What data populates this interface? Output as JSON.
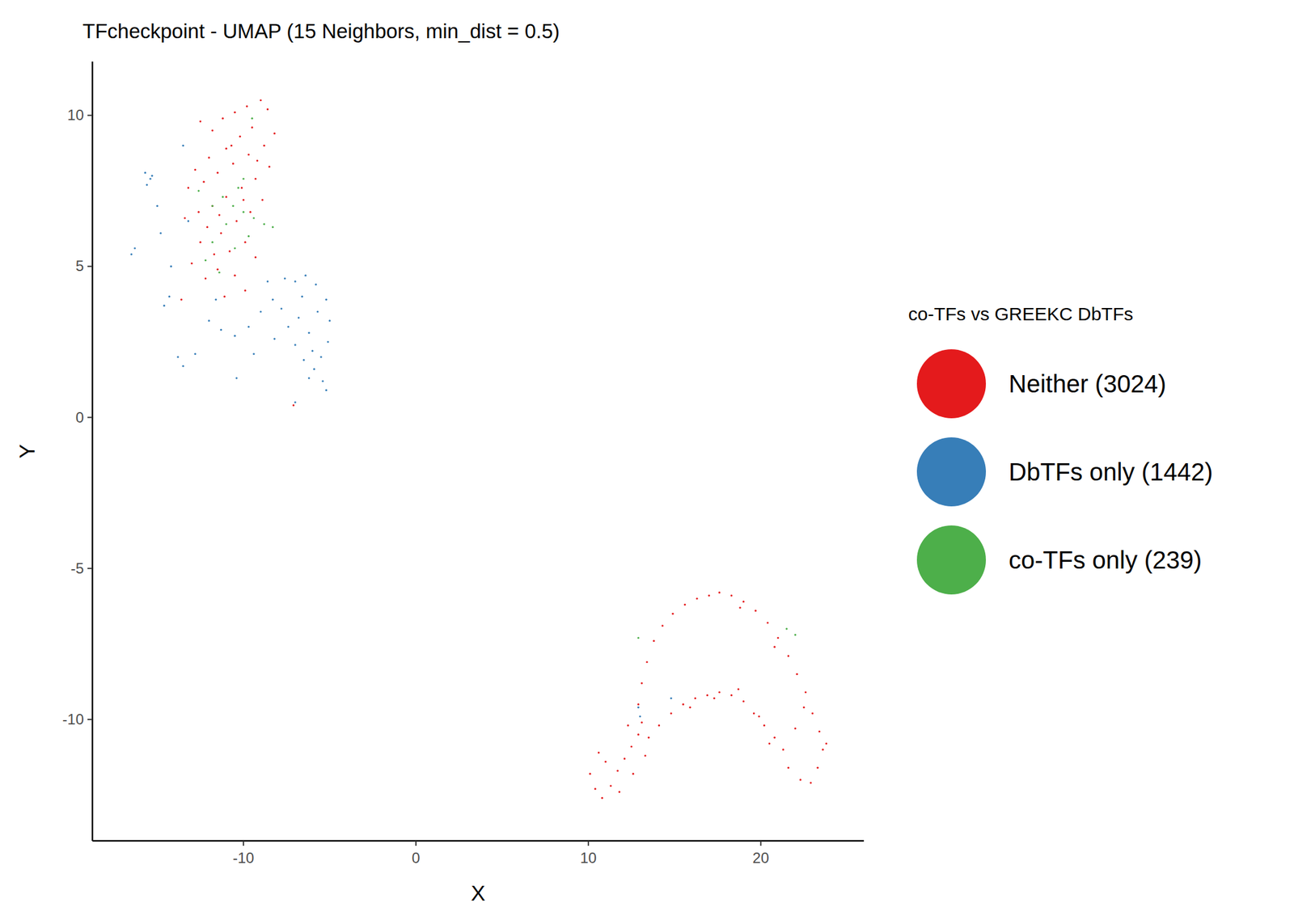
{
  "chart_data": {
    "type": "scatter",
    "title": "TFcheckpoint - UMAP (15 Neighbors, min_dist = 0.5)",
    "x_label": "X",
    "y_label": "Y",
    "legend_title": "co-TFs vs GREEKC DbTFs",
    "legend": "right",
    "grid": false,
    "marker": "circle",
    "xlim": [
      -18.76,
      25.98
    ],
    "ylim": [
      -14.02,
      11.78
    ],
    "xticks": [
      -10,
      0,
      10,
      20
    ],
    "yticks": [
      -10,
      -5,
      0,
      5,
      10
    ],
    "series": [
      {
        "name": "Neither (3024)",
        "color": "#e41a1c",
        "x": [
          -12.5,
          -11.8,
          -11.2,
          -10.5,
          -9.8,
          -9,
          -8.6,
          -9.5,
          -10.2,
          -11,
          -12,
          -12.8,
          -13.2,
          -12.3,
          -11.5,
          -10.6,
          -9.7,
          -8.8,
          -8.2,
          -8.5,
          -9.3,
          -10.1,
          -11,
          -11.8,
          -12.6,
          -13.4,
          -12.1,
          -11.3,
          -10.4,
          -9.6,
          -8.9,
          -9.9,
          -10.8,
          -11.7,
          -12.5,
          -13,
          -12.2,
          -11.5,
          -10.5,
          -9.3,
          -9.9,
          -11.1,
          -13.6,
          -7.1,
          -10.7,
          -9.2,
          -11.4,
          -10.0,
          12.9,
          13.1,
          13.4,
          13.8,
          14.3,
          14.9,
          15.6,
          16.3,
          17.0,
          17.6,
          18.3,
          19.0,
          19.7,
          20.4,
          21.0,
          21.6,
          22.1,
          22.6,
          23.0,
          23.4,
          23.6,
          23.3,
          22.9,
          22.3,
          21.6,
          22.0,
          23.8,
          22.5,
          20.8,
          18.8,
          13.5,
          14.1,
          14.8,
          15.5,
          16.2,
          16.9,
          17.6,
          18.3,
          19.0,
          19.6,
          20.2,
          20.8,
          21.3,
          15.9,
          17.3,
          18.7,
          19.9,
          20.5,
          10.1,
          10.4,
          10.8,
          11.3,
          11.7,
          12.1,
          12.5,
          12.9,
          13.1,
          11.0,
          11.8,
          12.6,
          10.6,
          13.3,
          12.3
        ],
        "values": [
          9.8,
          9.5,
          9.9,
          10.1,
          10.3,
          10.5,
          10.2,
          9.6,
          9.3,
          8.9,
          8.6,
          8.2,
          7.6,
          7.8,
          8.1,
          8.4,
          8.7,
          9,
          9.4,
          8.3,
          7.9,
          7.6,
          7.3,
          7,
          6.8,
          6.6,
          6.3,
          6.1,
          6.5,
          6.8,
          7.2,
          5.8,
          5.5,
          5.4,
          5.8,
          5.1,
          4.6,
          4.9,
          4.7,
          5.3,
          4.2,
          4.0,
          3.9,
          0.4,
          9.0,
          8.5,
          6.7,
          7.2,
          -9.5,
          -8.8,
          -8.1,
          -7.4,
          -6.9,
          -6.5,
          -6.2,
          -6.0,
          -5.9,
          -5.8,
          -5.9,
          -6.1,
          -6.4,
          -6.8,
          -7.3,
          -7.9,
          -8.5,
          -9.1,
          -9.8,
          -10.4,
          -11.0,
          -11.6,
          -12.1,
          -12.0,
          -11.6,
          -10.3,
          -10.8,
          -9.6,
          -7.6,
          -6.3,
          -10.6,
          -10.2,
          -9.8,
          -9.5,
          -9.3,
          -9.2,
          -9.1,
          -9.2,
          -9.4,
          -9.8,
          -10.2,
          -10.6,
          -11.0,
          -9.6,
          -9.3,
          -9.0,
          -9.9,
          -10.8,
          -11.8,
          -12.3,
          -12.6,
          -12.2,
          -11.7,
          -11.3,
          -10.9,
          -10.5,
          -10.1,
          -11.4,
          -12.4,
          -11.8,
          -11.1,
          -11.2,
          -10.2
        ]
      },
      {
        "name": "DbTFs only (1442)",
        "color": "#377eb8",
        "x": [
          -7.6,
          -7.0,
          -6.4,
          -5.8,
          -5.2,
          -5.0,
          -5.1,
          -5.5,
          -5.9,
          -6.5,
          -7.0,
          -7.4,
          -7.8,
          -6.8,
          -6.2,
          -5.7,
          -6.0,
          -6.6,
          -5.4,
          -5.2,
          -6.2,
          -8.3,
          -9.0,
          -9.7,
          -10.5,
          -11.3,
          -12.0,
          -12.8,
          -13.5,
          -13.8,
          -10.4,
          -9.4,
          -8.6,
          -8.2,
          -11.6,
          -15.7,
          -15.4,
          -15.6,
          -15.3,
          -16.5,
          -16.3,
          -14.6,
          -14.3,
          -14.8,
          -15.0,
          -13.5,
          -14.2,
          -13.2,
          12.9,
          13.0,
          14.8,
          -7.0
        ],
        "values": [
          4.6,
          4.5,
          4.7,
          4.4,
          3.9,
          3.2,
          2.5,
          2.0,
          1.6,
          1.9,
          2.4,
          3.0,
          3.6,
          3.3,
          2.8,
          3.5,
          2.2,
          4.0,
          1.2,
          0.9,
          1.3,
          3.9,
          3.5,
          3.0,
          2.7,
          2.9,
          3.2,
          2.1,
          1.7,
          2.0,
          1.3,
          2.1,
          4.5,
          2.6,
          3.9,
          8.1,
          7.9,
          7.7,
          8.0,
          5.4,
          5.6,
          3.7,
          4.0,
          6.1,
          7.0,
          9.0,
          5.0,
          6.5,
          -9.6,
          -9.9,
          -9.3,
          0.5
        ]
      },
      {
        "name": "co-TFs only (239)",
        "color": "#4daf4a",
        "x": [
          -11.8,
          -11.2,
          -10.6,
          -10.0,
          -9.4,
          -8.8,
          -8.3,
          -10.3,
          -11.0,
          -11.8,
          -12.2,
          -10.5,
          -9.7,
          -11.4,
          -10.0,
          -9.5,
          -12.6,
          12.9,
          21.5,
          22.0
        ],
        "values": [
          7.0,
          7.3,
          7.0,
          6.8,
          6.6,
          6.4,
          6.3,
          7.6,
          6.4,
          5.8,
          5.2,
          5.6,
          6.0,
          4.8,
          7.9,
          9.9,
          7.5,
          -7.3,
          -7.0,
          -7.2
        ]
      }
    ]
  }
}
